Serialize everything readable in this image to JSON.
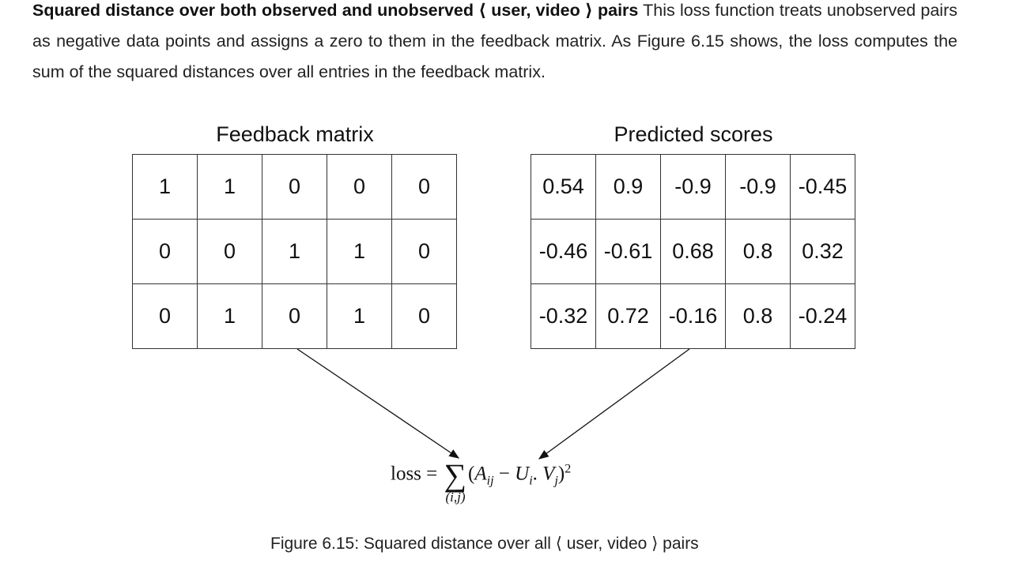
{
  "paragraph": {
    "bold_lead": "Squared distance over both observed and unobserved ⟨ user, video ⟩ pairs",
    "text": " This loss function treats unobserved pairs as negative data points and assigns a zero to them in the feedback matrix. As Figure 6.15 shows, the loss computes the sum of the squared distances over all entries in the feedback matrix."
  },
  "figure": {
    "feedback_title": "Feedback matrix",
    "predicted_title": "Predicted scores",
    "feedback_matrix": [
      [
        "1",
        "1",
        "0",
        "0",
        "0"
      ],
      [
        "0",
        "0",
        "1",
        "1",
        "0"
      ],
      [
        "0",
        "1",
        "0",
        "1",
        "0"
      ]
    ],
    "predicted_matrix": [
      [
        "0.54",
        "0.9",
        "-0.9",
        "-0.9",
        "-0.45"
      ],
      [
        "-0.46",
        "-0.61",
        "0.68",
        "0.8",
        "0.32"
      ],
      [
        "-0.32",
        "0.72",
        "-0.16",
        "0.8",
        "-0.24"
      ]
    ],
    "formula": {
      "lhs": "loss",
      "eq": "=",
      "sum_symbol": "∑",
      "sum_index": "(i,j)",
      "open": "(",
      "A": "A",
      "A_sub": "ij",
      "minus": "−",
      "U": "U",
      "U_sub": "i",
      "dot": ".",
      "V": "V",
      "V_sub": "j",
      "close": ")",
      "power": "2"
    }
  },
  "caption": "Figure 6.15: Squared distance over all ⟨ user, video ⟩ pairs"
}
